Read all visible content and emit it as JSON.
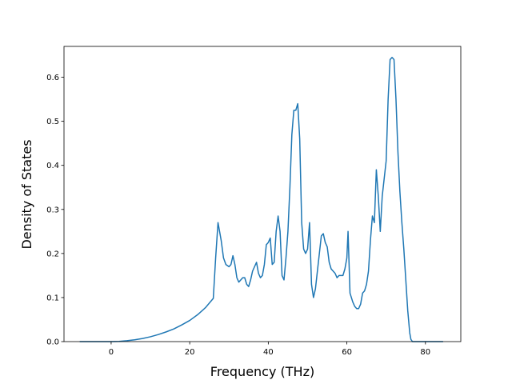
{
  "chart_data": {
    "type": "line",
    "title": "",
    "xlabel": "Frequency (THz)",
    "ylabel": "Density of States",
    "xlim": [
      -12,
      89
    ],
    "ylim": [
      0.0,
      0.67
    ],
    "xticks": [
      0,
      20,
      40,
      60,
      80
    ],
    "yticks": [
      0.0,
      0.1,
      0.2,
      0.3,
      0.4,
      0.5,
      0.6
    ],
    "xtick_labels": [
      "0",
      "20",
      "40",
      "60",
      "80"
    ],
    "ytick_labels": [
      "0.0",
      "0.1",
      "0.2",
      "0.3",
      "0.4",
      "0.5",
      "0.6"
    ],
    "grid": false,
    "legend": false,
    "color": "#1f77b4",
    "series": [
      {
        "x": [
          -8,
          -4,
          0,
          2,
          4,
          6,
          8,
          10,
          12,
          14,
          16,
          18,
          20,
          22,
          24,
          26,
          26.6,
          27.2,
          28,
          28.6,
          29.2,
          30,
          30.5,
          31,
          31.5,
          32,
          32.5,
          33,
          33.5,
          34,
          34.5,
          35,
          35.5,
          36,
          36.5,
          37,
          37.5,
          38,
          38.5,
          39,
          39.5,
          40,
          40.5,
          41,
          41.5,
          42,
          42.5,
          43,
          43.5,
          44,
          44.5,
          45,
          45.5,
          46,
          46.5,
          47,
          47.5,
          48,
          48.5,
          49,
          49.5,
          50,
          50.5,
          51,
          51.5,
          52,
          52.5,
          53,
          53.5,
          54,
          54.5,
          55,
          55.5,
          56,
          56.5,
          57,
          57.5,
          58,
          58.5,
          59,
          59.5,
          60,
          60.3,
          60.8,
          61.5,
          62,
          62.5,
          63,
          63.5,
          64,
          64.5,
          65,
          65.5,
          66,
          66.5,
          67,
          67.5,
          68,
          68.5,
          69,
          69.5,
          70,
          70.5,
          71,
          71.5,
          72,
          72.5,
          73,
          73.5,
          74,
          74.5,
          75,
          75.5,
          76,
          76.3,
          76.7,
          77.5,
          80,
          84.5
        ],
        "y": [
          0.0,
          0.0,
          0.0,
          0.0005,
          0.002,
          0.004,
          0.007,
          0.011,
          0.016,
          0.022,
          0.029,
          0.038,
          0.048,
          0.061,
          0.077,
          0.098,
          0.19,
          0.27,
          0.23,
          0.19,
          0.175,
          0.17,
          0.175,
          0.195,
          0.175,
          0.145,
          0.135,
          0.14,
          0.145,
          0.145,
          0.13,
          0.125,
          0.14,
          0.16,
          0.17,
          0.18,
          0.155,
          0.145,
          0.15,
          0.175,
          0.22,
          0.225,
          0.235,
          0.175,
          0.18,
          0.25,
          0.285,
          0.25,
          0.15,
          0.14,
          0.19,
          0.25,
          0.35,
          0.47,
          0.525,
          0.525,
          0.54,
          0.46,
          0.27,
          0.21,
          0.2,
          0.21,
          0.27,
          0.13,
          0.1,
          0.12,
          0.16,
          0.2,
          0.24,
          0.245,
          0.225,
          0.215,
          0.18,
          0.165,
          0.16,
          0.155,
          0.145,
          0.15,
          0.15,
          0.15,
          0.165,
          0.19,
          0.25,
          0.11,
          0.09,
          0.08,
          0.075,
          0.075,
          0.085,
          0.11,
          0.115,
          0.13,
          0.16,
          0.23,
          0.285,
          0.27,
          0.39,
          0.33,
          0.25,
          0.33,
          0.37,
          0.41,
          0.55,
          0.64,
          0.645,
          0.64,
          0.55,
          0.43,
          0.34,
          0.27,
          0.21,
          0.14,
          0.07,
          0.02,
          0.005,
          0.0,
          0.0,
          0.0,
          0.0
        ]
      }
    ]
  }
}
